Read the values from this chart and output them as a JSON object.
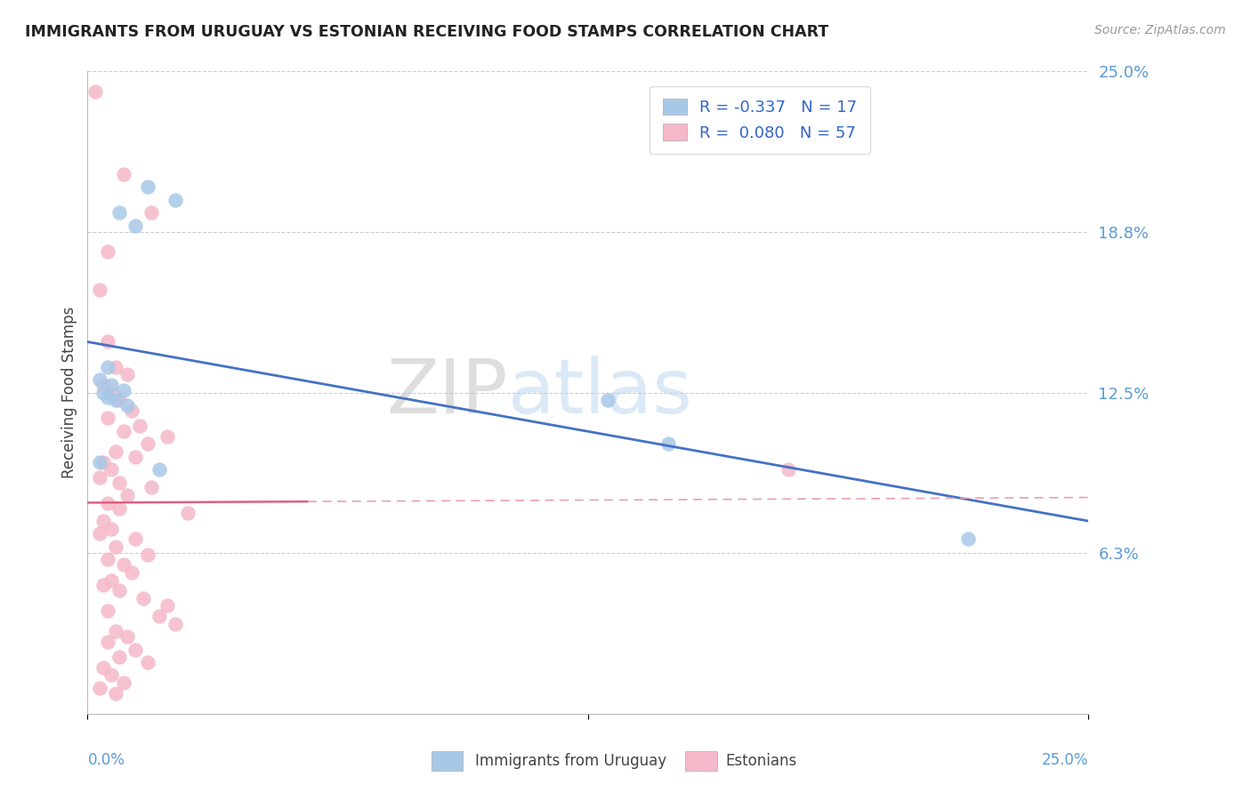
{
  "title": "IMMIGRANTS FROM URUGUAY VS ESTONIAN RECEIVING FOOD STAMPS CORRELATION CHART",
  "source": "Source: ZipAtlas.com",
  "ylabel": "Receiving Food Stamps",
  "xmin": 0.0,
  "xmax": 25.0,
  "ymin": 0.0,
  "ymax": 25.0,
  "hlines": [
    6.25,
    12.5,
    18.75,
    25.0
  ],
  "blue_color": "#a8c8e8",
  "pink_color": "#f5b8c8",
  "blue_line_color": "#4472c4",
  "pink_line_color": "#e06080",
  "pink_dash_color": "#e8a0b0",
  "watermark_zip": "ZIP",
  "watermark_atlas": "atlas",
  "legend_blue_label": "R = -0.337   N = 17",
  "legend_pink_label": "R =  0.080   N = 57",
  "bottom_legend_blue": "Immigrants from Uruguay",
  "bottom_legend_pink": "Estonians",
  "uruguay_points": [
    [
      0.5,
      13.5
    ],
    [
      1.5,
      20.5
    ],
    [
      2.2,
      20.0
    ],
    [
      0.8,
      19.5
    ],
    [
      1.2,
      19.0
    ],
    [
      0.3,
      13.0
    ],
    [
      0.6,
      12.8
    ],
    [
      0.4,
      12.5
    ],
    [
      0.7,
      12.2
    ],
    [
      1.0,
      12.0
    ],
    [
      0.5,
      12.3
    ],
    [
      0.9,
      12.6
    ],
    [
      1.8,
      9.5
    ],
    [
      13.0,
      12.2
    ],
    [
      14.5,
      10.5
    ],
    [
      22.0,
      6.8
    ],
    [
      0.3,
      9.8
    ]
  ],
  "estonian_points": [
    [
      0.2,
      24.2
    ],
    [
      0.9,
      21.0
    ],
    [
      1.6,
      19.5
    ],
    [
      0.5,
      18.0
    ],
    [
      0.3,
      16.5
    ],
    [
      0.5,
      14.5
    ],
    [
      0.7,
      13.5
    ],
    [
      1.0,
      13.2
    ],
    [
      0.4,
      12.8
    ],
    [
      0.6,
      12.5
    ],
    [
      0.8,
      12.2
    ],
    [
      1.1,
      11.8
    ],
    [
      0.5,
      11.5
    ],
    [
      1.3,
      11.2
    ],
    [
      0.9,
      11.0
    ],
    [
      2.0,
      10.8
    ],
    [
      1.5,
      10.5
    ],
    [
      0.7,
      10.2
    ],
    [
      1.2,
      10.0
    ],
    [
      0.4,
      9.8
    ],
    [
      0.6,
      9.5
    ],
    [
      0.3,
      9.2
    ],
    [
      0.8,
      9.0
    ],
    [
      1.6,
      8.8
    ],
    [
      1.0,
      8.5
    ],
    [
      0.5,
      8.2
    ],
    [
      0.8,
      8.0
    ],
    [
      2.5,
      7.8
    ],
    [
      0.4,
      7.5
    ],
    [
      0.6,
      7.2
    ],
    [
      0.3,
      7.0
    ],
    [
      1.2,
      6.8
    ],
    [
      0.7,
      6.5
    ],
    [
      1.5,
      6.2
    ],
    [
      0.5,
      6.0
    ],
    [
      0.9,
      5.8
    ],
    [
      1.1,
      5.5
    ],
    [
      0.6,
      5.2
    ],
    [
      0.4,
      5.0
    ],
    [
      0.8,
      4.8
    ],
    [
      1.4,
      4.5
    ],
    [
      2.0,
      4.2
    ],
    [
      0.5,
      4.0
    ],
    [
      1.8,
      3.8
    ],
    [
      2.2,
      3.5
    ],
    [
      0.7,
      3.2
    ],
    [
      1.0,
      3.0
    ],
    [
      0.5,
      2.8
    ],
    [
      1.2,
      2.5
    ],
    [
      0.8,
      2.2
    ],
    [
      1.5,
      2.0
    ],
    [
      0.4,
      1.8
    ],
    [
      0.6,
      1.5
    ],
    [
      0.9,
      1.2
    ],
    [
      0.3,
      1.0
    ],
    [
      0.7,
      0.8
    ],
    [
      17.5,
      9.5
    ]
  ]
}
